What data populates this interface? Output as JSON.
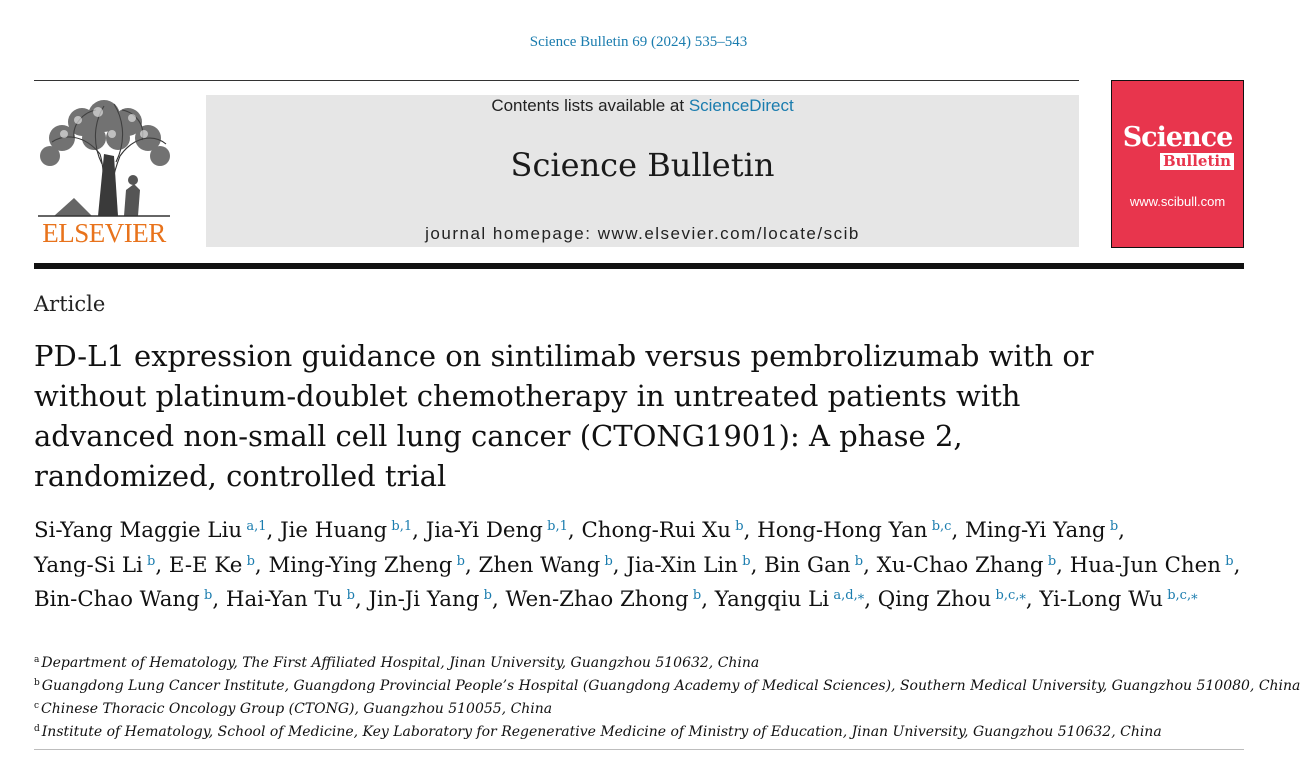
{
  "citation": "Science Bulletin 69 (2024) 535–543",
  "publisher": {
    "name": "ELSEVIER",
    "logo_icon": "elsevier-tree-logo",
    "colors": {
      "wordmark": "#e8731c"
    }
  },
  "masthead": {
    "contents_prefix": "Contents lists available at ",
    "contents_link": "ScienceDirect",
    "journal_title": "Science Bulletin",
    "homepage": "journal homepage: www.elsevier.com/locate/scib",
    "colors": {
      "background": "#e6e6e6",
      "link": "#1a7cae"
    }
  },
  "cover": {
    "line1": "Science",
    "line2": "Bulletin",
    "url": "www.scibull.com",
    "colors": {
      "background": "#e8354d"
    }
  },
  "article": {
    "type": "Article",
    "title": "PD-L1 expression guidance on sintilimab versus pembrolizumab with or without platinum-doublet chemotherapy in untreated patients with advanced non-small cell lung cancer (CTONG1901): A phase 2, randomized, controlled trial",
    "authors": [
      {
        "name": "Si-Yang Maggie Liu",
        "aff": "a,1"
      },
      {
        "name": "Jie Huang",
        "aff": "b,1"
      },
      {
        "name": "Jia-Yi Deng",
        "aff": "b,1"
      },
      {
        "name": "Chong-Rui Xu",
        "aff": "b"
      },
      {
        "name": "Hong-Hong Yan",
        "aff": "b,c"
      },
      {
        "name": "Ming-Yi Yang",
        "aff": "b"
      },
      {
        "name": "Yang-Si Li",
        "aff": "b"
      },
      {
        "name": "E-E Ke",
        "aff": "b"
      },
      {
        "name": "Ming-Ying Zheng",
        "aff": "b"
      },
      {
        "name": "Zhen Wang",
        "aff": "b"
      },
      {
        "name": "Jia-Xin Lin",
        "aff": "b"
      },
      {
        "name": "Bin Gan",
        "aff": "b"
      },
      {
        "name": "Xu-Chao Zhang",
        "aff": "b"
      },
      {
        "name": "Hua-Jun Chen",
        "aff": "b"
      },
      {
        "name": "Bin-Chao Wang",
        "aff": "b"
      },
      {
        "name": "Hai-Yan Tu",
        "aff": "b"
      },
      {
        "name": "Jin-Ji Yang",
        "aff": "b"
      },
      {
        "name": "Wen-Zhao Zhong",
        "aff": "b"
      },
      {
        "name": "Yangqiu Li",
        "aff": "a,d,⁎"
      },
      {
        "name": "Qing Zhou",
        "aff": "b,c,⁎"
      },
      {
        "name": "Yi-Long Wu",
        "aff": "b,c,⁎"
      }
    ],
    "affiliations": [
      {
        "letter": "a",
        "text": "Department of Hematology, The First Affiliated Hospital, Jinan University, Guangzhou 510632, China"
      },
      {
        "letter": "b",
        "text": "Guangdong Lung Cancer Institute, Guangdong Provincial People’s Hospital (Guangdong Academy of Medical Sciences), Southern Medical University, Guangzhou 510080, China"
      },
      {
        "letter": "c",
        "text": "Chinese Thoracic Oncology Group (CTONG), Guangzhou 510055, China"
      },
      {
        "letter": "d",
        "text": "Institute of Hematology, School of Medicine, Key Laboratory for Regenerative Medicine of Ministry of Education, Jinan University, Guangzhou 510632, China"
      }
    ]
  }
}
